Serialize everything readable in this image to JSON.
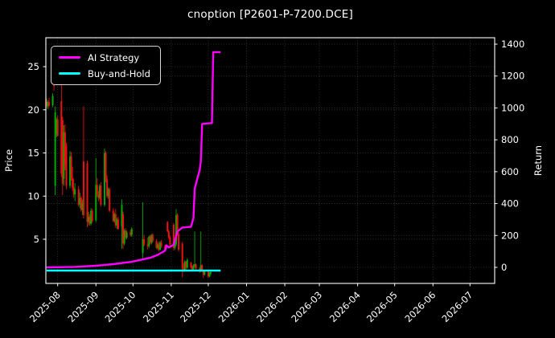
{
  "header": {
    "title": "cnoption [P2601-P-7200.DCE]"
  },
  "legend": {
    "items": [
      {
        "label": "AI Strategy",
        "color": "#ff00ff"
      },
      {
        "label": "Buy-and-Hold",
        "color": "#00ffff"
      }
    ]
  },
  "chart_data": {
    "type": "candlestick",
    "title": "cnoption [P2601-P-7200.DCE]",
    "background": "#000000",
    "text_color": "#ffffff",
    "grid": {
      "on": true,
      "color": "#3c3c3c",
      "style": "dotted"
    },
    "up_color": "#00aa00",
    "down_color": "#ee1111",
    "x_axis": {
      "tick_labels": [
        "2025-08",
        "2025-09",
        "2025-10",
        "2025-11",
        "2025-12",
        "2026-01",
        "2026-02",
        "2026-03",
        "2026-04",
        "2026-05",
        "2026-06",
        "2026-07"
      ],
      "tick_dates": [
        "2025-08-01",
        "2025-09-01",
        "2025-10-01",
        "2025-11-01",
        "2025-12-01",
        "2026-01-01",
        "2026-02-01",
        "2026-03-01",
        "2026-04-01",
        "2026-05-01",
        "2026-06-01",
        "2026-07-01"
      ],
      "range_dates": [
        "2025-07-22",
        "2026-07-21"
      ]
    },
    "left_axis": {
      "label": "Price",
      "ticks": [
        5,
        10,
        15,
        20,
        25
      ],
      "range": [
        0.1,
        28.4
      ]
    },
    "right_axis": {
      "label": "Return",
      "ticks": [
        0,
        200,
        400,
        600,
        800,
        1000,
        1200,
        1400
      ],
      "range": [
        -101,
        1440
      ]
    },
    "candles": {
      "columns": [
        "date",
        "open",
        "high",
        "low",
        "close"
      ],
      "rows": [
        [
          "2025-07-23",
          20.9,
          21.3,
          20.2,
          20.4
        ],
        [
          "2025-07-24",
          20.4,
          21.1,
          20.1,
          20.9
        ],
        [
          "2025-07-25",
          20.9,
          21.4,
          20.3,
          20.5
        ],
        [
          "2025-07-28",
          20.5,
          21.9,
          20.3,
          21.6
        ],
        [
          "2025-07-29",
          24.2,
          25.7,
          22.2,
          22.8
        ],
        [
          "2025-07-30",
          11.2,
          20.4,
          10.1,
          19.7
        ],
        [
          "2025-07-31",
          17.2,
          19.1,
          16.8,
          18.9
        ],
        [
          "2025-08-01",
          18.9,
          19.3,
          16.9,
          17.0
        ],
        [
          "2025-08-04",
          21.0,
          23.3,
          12.2,
          12.6
        ],
        [
          "2025-08-05",
          18.8,
          19.2,
          10.1,
          11.4
        ],
        [
          "2025-08-06",
          12.0,
          18.2,
          11.2,
          17.4
        ],
        [
          "2025-08-07",
          17.4,
          18.3,
          13.0,
          13.6
        ],
        [
          "2025-08-08",
          15.8,
          16.2,
          10.8,
          11.2
        ],
        [
          "2025-08-11",
          11.2,
          15.2,
          10.9,
          14.6
        ],
        [
          "2025-08-12",
          14.6,
          15.1,
          11.8,
          12.1
        ],
        [
          "2025-08-13",
          12.1,
          13.4,
          10.6,
          11.0
        ],
        [
          "2025-08-14",
          11.0,
          12.0,
          9.8,
          10.2
        ],
        [
          "2025-08-15",
          10.2,
          11.5,
          9.4,
          10.8
        ],
        [
          "2025-08-18",
          10.8,
          11.2,
          8.8,
          9.0
        ],
        [
          "2025-08-19",
          9.0,
          10.4,
          8.6,
          9.8
        ],
        [
          "2025-08-20",
          9.8,
          10.0,
          8.2,
          8.4
        ],
        [
          "2025-08-21",
          8.4,
          9.6,
          7.8,
          9.2
        ],
        [
          "2025-08-22",
          14.0,
          20.4,
          7.4,
          7.8
        ],
        [
          "2025-08-25",
          13.8,
          14.1,
          6.4,
          7.0
        ],
        [
          "2025-08-26",
          7.0,
          8.2,
          6.6,
          7.6
        ],
        [
          "2025-08-27",
          7.6,
          7.9,
          6.6,
          6.8
        ],
        [
          "2025-08-28",
          6.8,
          8.6,
          6.6,
          8.3
        ],
        [
          "2025-08-29",
          8.3,
          8.5,
          6.9,
          7.1
        ],
        [
          "2025-09-01",
          7.2,
          14.4,
          7.0,
          11.3
        ],
        [
          "2025-09-02",
          11.3,
          12.1,
          9.9,
          10.2
        ],
        [
          "2025-09-03",
          10.2,
          10.6,
          9.4,
          9.8
        ],
        [
          "2025-09-04",
          9.8,
          11.4,
          9.6,
          11.2
        ],
        [
          "2025-09-05",
          11.2,
          11.6,
          8.8,
          9.0
        ],
        [
          "2025-09-08",
          9.0,
          15.5,
          8.8,
          15.0
        ],
        [
          "2025-09-09",
          15.0,
          15.2,
          11.6,
          12.0
        ],
        [
          "2025-09-10",
          12.0,
          12.4,
          9.8,
          10.0
        ],
        [
          "2025-09-11",
          10.0,
          11.0,
          9.7,
          10.8
        ],
        [
          "2025-09-12",
          10.8,
          11.0,
          8.1,
          8.3
        ],
        [
          "2025-09-15",
          8.3,
          8.6,
          7.0,
          7.1
        ],
        [
          "2025-09-16",
          7.1,
          8.1,
          6.9,
          7.9
        ],
        [
          "2025-09-17",
          7.9,
          8.5,
          6.3,
          6.6
        ],
        [
          "2025-09-18",
          6.6,
          7.5,
          6.2,
          7.3
        ],
        [
          "2025-09-19",
          7.3,
          7.6,
          6.1,
          6.2
        ],
        [
          "2025-09-22",
          6.5,
          9.6,
          3.9,
          9.0
        ],
        [
          "2025-09-23",
          7.9,
          8.2,
          3.9,
          4.5
        ],
        [
          "2025-09-24",
          4.5,
          6.2,
          4.3,
          6.0
        ],
        [
          "2025-09-25",
          6.0,
          6.3,
          5.0,
          5.2
        ],
        [
          "2025-09-26",
          5.2,
          6.0,
          5.0,
          5.8
        ],
        [
          "2025-09-29",
          5.8,
          6.1,
          5.3,
          5.5
        ],
        [
          "2025-09-30",
          5.5,
          6.4,
          5.3,
          6.2
        ],
        [
          "2025-10-09",
          3.4,
          9.3,
          2.7,
          5.0
        ],
        [
          "2025-10-10",
          5.0,
          5.5,
          4.2,
          4.4
        ],
        [
          "2025-10-13",
          4.4,
          5.2,
          3.8,
          4.2
        ],
        [
          "2025-10-14",
          4.2,
          5.4,
          4.0,
          5.3
        ],
        [
          "2025-10-15",
          5.3,
          5.5,
          4.4,
          4.6
        ],
        [
          "2025-10-16",
          4.6,
          5.6,
          4.4,
          5.5
        ],
        [
          "2025-10-17",
          5.5,
          5.7,
          4.6,
          4.8
        ],
        [
          "2025-10-20",
          4.8,
          5.0,
          3.9,
          4.0
        ],
        [
          "2025-10-21",
          4.0,
          4.6,
          3.8,
          4.4
        ],
        [
          "2025-10-22",
          4.4,
          4.7,
          3.6,
          3.8
        ],
        [
          "2025-10-23",
          3.8,
          4.8,
          3.7,
          4.6
        ],
        [
          "2025-10-24",
          4.6,
          4.9,
          4.0,
          4.2
        ],
        [
          "2025-10-27",
          4.2,
          4.4,
          3.7,
          3.9
        ],
        [
          "2025-10-28",
          3.9,
          4.3,
          3.8,
          4.1
        ],
        [
          "2025-10-29",
          7.0,
          7.1,
          5.8,
          5.9
        ],
        [
          "2025-10-30",
          5.9,
          6.1,
          5.0,
          5.2
        ],
        [
          "2025-10-31",
          5.2,
          5.4,
          4.2,
          4.4
        ],
        [
          "2025-11-03",
          6.7,
          6.9,
          3.7,
          4.0
        ],
        [
          "2025-11-04",
          4.0,
          4.6,
          3.8,
          4.4
        ],
        [
          "2025-11-05",
          4.4,
          8.5,
          4.2,
          7.8
        ],
        [
          "2025-11-06",
          7.8,
          8.0,
          5.4,
          5.6
        ],
        [
          "2025-11-07",
          5.6,
          5.8,
          3.6,
          3.8
        ],
        [
          "2025-11-10",
          4.5,
          4.7,
          0.6,
          1.6
        ],
        [
          "2025-11-11",
          1.6,
          2.2,
          1.2,
          1.4
        ],
        [
          "2025-11-12",
          1.4,
          2.6,
          1.3,
          2.4
        ],
        [
          "2025-11-13",
          2.4,
          2.5,
          1.5,
          1.7
        ],
        [
          "2025-11-14",
          1.7,
          2.8,
          1.6,
          2.6
        ],
        [
          "2025-11-17",
          2.3,
          2.4,
          1.6,
          1.7
        ],
        [
          "2025-11-18",
          1.7,
          2.0,
          1.3,
          1.5
        ],
        [
          "2025-11-19",
          1.5,
          2.1,
          1.4,
          1.9
        ],
        [
          "2025-11-20",
          1.9,
          5.9,
          1.7,
          2.1
        ],
        [
          "2025-11-21",
          2.1,
          2.2,
          1.4,
          1.6
        ],
        [
          "2025-11-24",
          1.6,
          1.8,
          1.1,
          1.3
        ],
        [
          "2025-11-25",
          1.3,
          5.9,
          1.2,
          2.0
        ],
        [
          "2025-11-26",
          2.0,
          2.1,
          1.2,
          1.4
        ],
        [
          "2025-11-27",
          1.3,
          1.5,
          0.5,
          0.9
        ],
        [
          "2025-11-28",
          0.9,
          1.4,
          0.8,
          1.3
        ],
        [
          "2025-12-01",
          1.3,
          1.4,
          0.5,
          0.7
        ],
        [
          "2025-12-02",
          0.7,
          1.2,
          0.6,
          1.1
        ],
        [
          "2025-12-03",
          1.1,
          1.3,
          0.9,
          1.2
        ]
      ]
    },
    "series": [
      {
        "name": "AI Strategy",
        "axis": "right",
        "color": "#ff00ff",
        "points": [
          [
            "2025-07-23",
            0
          ],
          [
            "2025-08-15",
            3
          ],
          [
            "2025-09-01",
            10
          ],
          [
            "2025-09-15",
            20
          ],
          [
            "2025-09-30",
            35
          ],
          [
            "2025-10-09",
            50
          ],
          [
            "2025-10-15",
            60
          ],
          [
            "2025-10-21",
            78
          ],
          [
            "2025-10-27",
            105
          ],
          [
            "2025-10-28",
            138
          ],
          [
            "2025-10-30",
            125
          ],
          [
            "2025-11-03",
            142
          ],
          [
            "2025-11-06",
            225
          ],
          [
            "2025-11-10",
            250
          ],
          [
            "2025-11-17",
            255
          ],
          [
            "2025-11-19",
            310
          ],
          [
            "2025-11-20",
            495
          ],
          [
            "2025-11-24",
            610
          ],
          [
            "2025-11-25",
            665
          ],
          [
            "2025-11-26",
            900
          ],
          [
            "2025-12-04",
            905
          ],
          [
            "2025-12-05",
            1350
          ],
          [
            "2025-12-11",
            1350
          ]
        ]
      },
      {
        "name": "Buy-and-Hold",
        "axis": "right",
        "color": "#00ffff",
        "points": [
          [
            "2025-07-23",
            -20
          ],
          [
            "2025-12-11",
            -20
          ]
        ]
      }
    ]
  }
}
